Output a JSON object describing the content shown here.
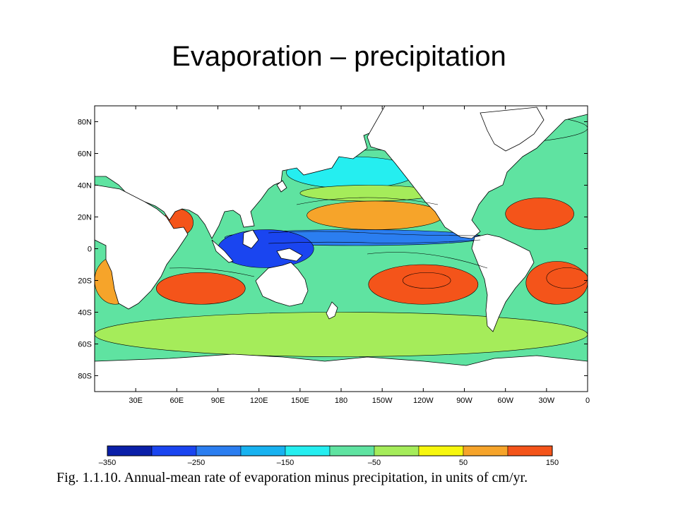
{
  "slide": {
    "title": "Evaporation – precipitation",
    "caption": "Fig. 1.1.10. Annual-mean rate of evaporation minus precipitation, in units of cm/yr."
  },
  "map": {
    "lat_ticks": [
      "80N",
      "60N",
      "40N",
      "20N",
      "0",
      "20S",
      "40S",
      "60S",
      "80S"
    ],
    "lon_ticks": [
      "30E",
      "60E",
      "90E",
      "120E",
      "150E",
      "180",
      "150W",
      "120W",
      "90W",
      "60W",
      "30W",
      "0"
    ],
    "lat_values": [
      80,
      60,
      40,
      20,
      0,
      -20,
      -40,
      -60,
      -80
    ],
    "lon_values": [
      30,
      60,
      90,
      120,
      150,
      180,
      210,
      240,
      270,
      300,
      330,
      360
    ],
    "lon_range": [
      0,
      360
    ],
    "lat_range": [
      -90,
      90
    ],
    "land_color": "#ffffff",
    "background_color": "#5fe3a1"
  },
  "colorbar": {
    "colors": [
      "#0a1fa8",
      "#1a45f0",
      "#2b7ef0",
      "#18b2f0",
      "#25eef0",
      "#5fe3a1",
      "#a5ec5a",
      "#f7f70e",
      "#f6a42a",
      "#f4541a"
    ],
    "tick_labels": [
      "–350",
      "–250",
      "–150",
      "–50",
      "50",
      "150"
    ],
    "tick_values": [
      -350,
      -250,
      -150,
      -50,
      50,
      150
    ],
    "range": [
      -350,
      150
    ]
  },
  "regions": [
    {
      "name": "arctic-cyan-band",
      "lon": [
        0,
        360
      ],
      "lat": [
        62,
        90
      ],
      "value": -100
    },
    {
      "name": "southern-ocean-green-band",
      "lon": [
        0,
        360
      ],
      "lat": [
        -68,
        -40
      ],
      "value": -50
    },
    {
      "name": "north-pacific-cyan",
      "lon": [
        140,
        235
      ],
      "lat": [
        38,
        58
      ],
      "value": -150
    },
    {
      "name": "north-pacific-green",
      "lon": [
        150,
        250
      ],
      "lat": [
        30,
        40
      ],
      "value": -50
    },
    {
      "name": "north-pacific-subtropical",
      "lon": [
        155,
        255
      ],
      "lat": [
        12,
        30
      ],
      "value": 50
    },
    {
      "name": "itcz-pacific",
      "lon": [
        95,
        285
      ],
      "lat": [
        2,
        12
      ],
      "value": -250
    },
    {
      "name": "indonesia-wet",
      "lon": [
        90,
        160
      ],
      "lat": [
        -12,
        12
      ],
      "value": -300
    },
    {
      "name": "south-indian-subtropical",
      "lon": [
        45,
        110
      ],
      "lat": [
        -35,
        -15
      ],
      "value": 100
    },
    {
      "name": "south-pacific-subtropical",
      "lon": [
        200,
        280
      ],
      "lat": [
        -35,
        -10
      ],
      "value": 100
    },
    {
      "name": "south-pacific-max",
      "lon": [
        225,
        260
      ],
      "lat": [
        -25,
        -15
      ],
      "value": 150
    },
    {
      "name": "north-atlantic-subtropical",
      "lon": [
        300,
        350
      ],
      "lat": [
        12,
        32
      ],
      "value": 100
    },
    {
      "name": "south-atlantic-subtropical",
      "lon": [
        315,
        360
      ],
      "lat": [
        -35,
        -8
      ],
      "value": 100
    },
    {
      "name": "south-atlantic-max",
      "lon": [
        330,
        360
      ],
      "lat": [
        -25,
        -12
      ],
      "value": 150
    },
    {
      "name": "arabian-sea",
      "lon": [
        50,
        72
      ],
      "lat": [
        8,
        25
      ],
      "value": 100
    },
    {
      "name": "west-indian-yellow",
      "lon": [
        0,
        30
      ],
      "lat": [
        -35,
        -5
      ],
      "value": 80
    }
  ]
}
